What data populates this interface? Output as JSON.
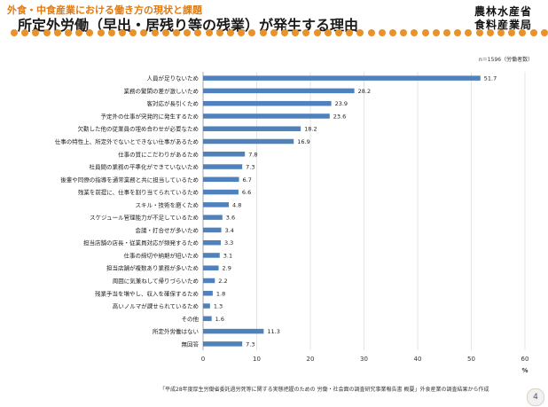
{
  "header": {
    "subtitle": "外食・中食産業における働き方の現状と課題",
    "title": "所定外労働（早出・居残り等の残業）が発生する理由",
    "ministry_line1": "農林水産省",
    "ministry_line2": "食料産業局"
  },
  "note": "n＝1596（労働者数）",
  "source": "「平成28年度厚生労働省委託過労死等に関する実態把握のための 労働・社会面の調査研究事業報告書 概要」外食産業の調査結果から作成",
  "page_number": "4",
  "colors": {
    "bar": "#4f81bd",
    "accent": "#e9922b",
    "subtitle": "#e07a10"
  },
  "chart_data": {
    "type": "bar",
    "orientation": "horizontal",
    "categories": [
      "人員が足りないため",
      "業務の繁閑の差が激しいため",
      "客対応が長引くため",
      "予定外の仕事が突発的に発生するため",
      "欠勤した他の従業員の埋め合わせが必要なため",
      "仕事の特性上、所定外でないとできない仕事があるため",
      "仕事の質にこだわりがあるため",
      "社員間の業務の平準化ができていないため",
      "後輩や同僚の指導を通常業務と共に担当しているため",
      "残業を前提に、仕事を割り当てられているため",
      "スキル・技術を磨くため",
      "スケジュール管理能力が不足しているため",
      "会議・打合せが多いため",
      "担当店舗の店長・従業員対応が頻発するため",
      "仕事の締切や納期が短いため",
      "担当店舗が複数あり業務が多いため",
      "周囲に気兼ねして帰りづらいため",
      "残業手当を増やし、収入を確保するため",
      "高いノルマが課せられているため",
      "その他",
      "所定外労働はない",
      "無回答"
    ],
    "values": [
      51.7,
      28.2,
      23.9,
      23.6,
      18.2,
      16.9,
      7.8,
      7.3,
      6.7,
      6.6,
      4.8,
      3.6,
      3.4,
      3.3,
      3.1,
      2.9,
      2.2,
      1.8,
      1.3,
      1.6,
      11.3,
      7.3
    ],
    "xlim": [
      0,
      60
    ],
    "xticks": [
      "0",
      "10",
      "20",
      "30",
      "40",
      "50",
      "60"
    ],
    "xlabel": "%",
    "grid": true
  }
}
